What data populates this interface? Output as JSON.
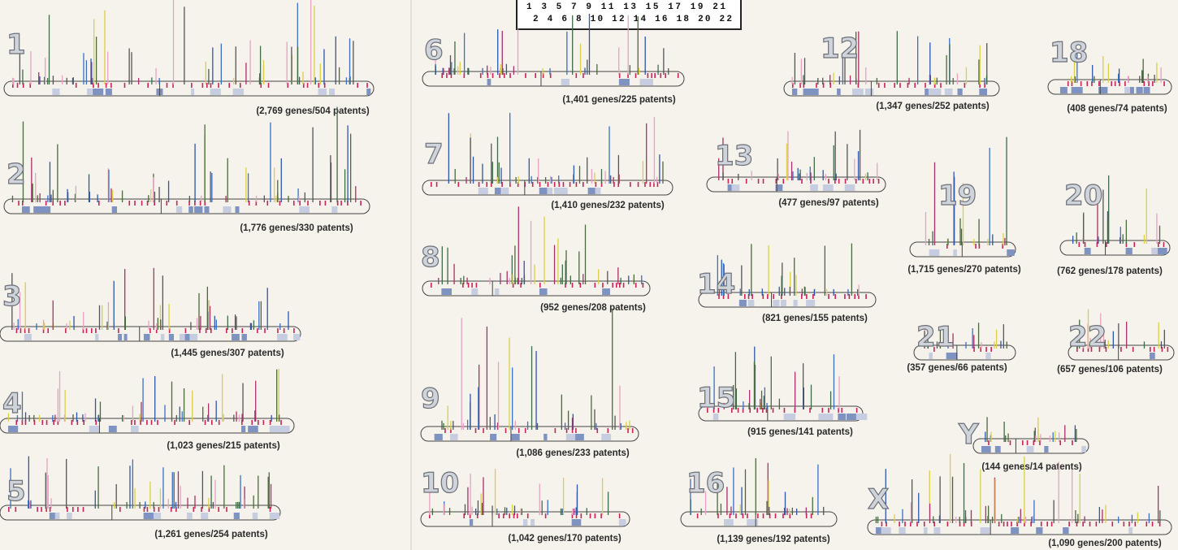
{
  "legend": {
    "odd": "1 3 5 7 9 11 13 15 17 19 21",
    "even": "2 4 6 8 10 12 14 16 18 20 22"
  },
  "chromosomes": [
    {
      "label": "1",
      "caption": "(2,769 genes/504 patents)"
    },
    {
      "label": "2",
      "caption": "(1,776 genes/330 patents)"
    },
    {
      "label": "3",
      "caption": "(1,445 genes/307 patents)"
    },
    {
      "label": "4",
      "caption": "(1,023 genes/215 patents)"
    },
    {
      "label": "5",
      "caption": "(1,261 genes/254 patents)"
    },
    {
      "label": "6",
      "caption": "(1,401 genes/225 patents)"
    },
    {
      "label": "7",
      "caption": "(1,410 genes/232 patents)"
    },
    {
      "label": "8",
      "caption": "(952 genes/208 patents)"
    },
    {
      "label": "9",
      "caption": "(1,086 genes/233 patents)"
    },
    {
      "label": "10",
      "caption": "(1,042 genes/170 patents)"
    },
    {
      "label": "12",
      "caption": "(1,347 genes/252 patents)"
    },
    {
      "label": "13",
      "caption": "(477 genes/97 patents)"
    },
    {
      "label": "14",
      "caption": "(821 genes/155 patents)"
    },
    {
      "label": "15",
      "caption": "(915 genes/141 patents)"
    },
    {
      "label": "16",
      "caption": "(1,139 genes/192 patents)"
    },
    {
      "label": "18",
      "caption": "(408 genes/74 patents)"
    },
    {
      "label": "19",
      "caption": "(1,715 genes/270 patents)"
    },
    {
      "label": "20",
      "caption": "(762 genes/178 patents)"
    },
    {
      "label": "21",
      "caption": "(357 genes/66 patents)"
    },
    {
      "label": "22",
      "caption": "(657 genes/106 patents)"
    },
    {
      "label": "Y",
      "caption": "(144 genes/14 patents)"
    },
    {
      "label": "X",
      "caption": "(1,090 genes/200 patents)"
    }
  ]
}
